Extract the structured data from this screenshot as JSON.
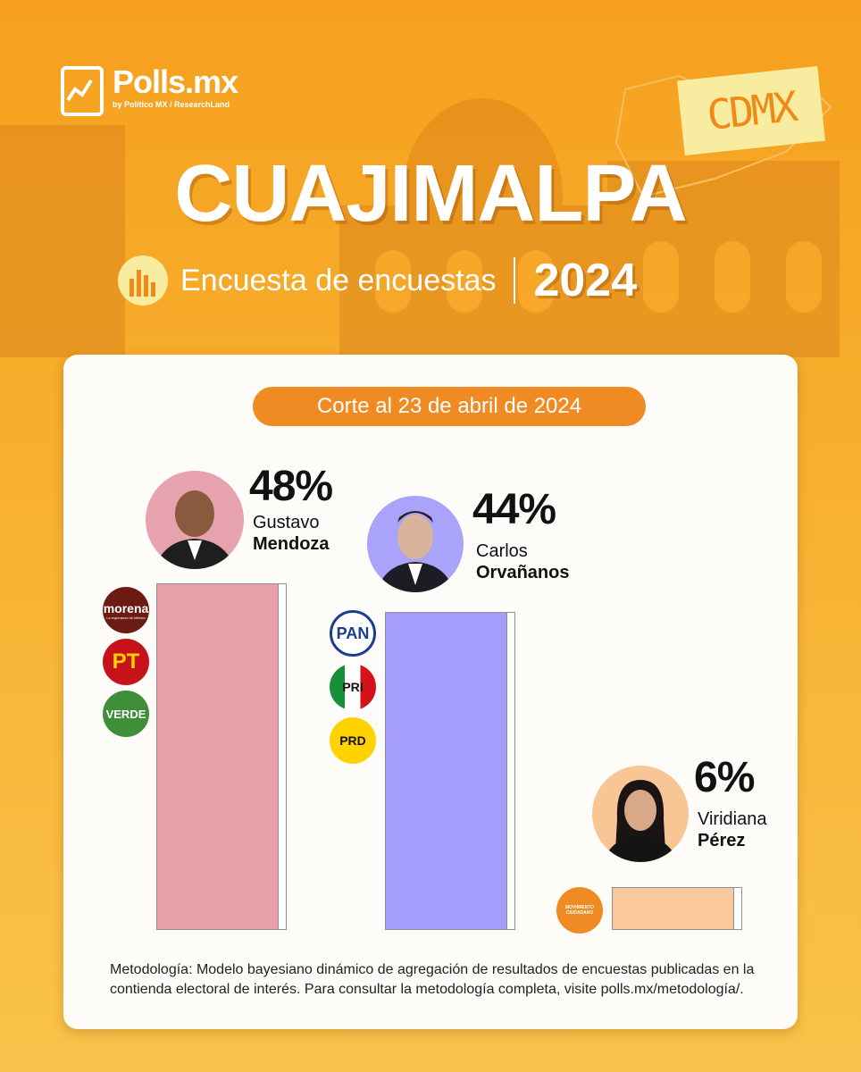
{
  "header": {
    "logo_name": "Polls.mx",
    "logo_sub": "by Político MX / ResearchLand",
    "region_badge": "CDMX",
    "title": "CUAJIMALPA",
    "subtitle": "Encuesta de encuestas",
    "year": "2024"
  },
  "chart_data": {
    "type": "bar",
    "title": "Corte al 23 de abril de 2024",
    "categories": [
      "Gustavo Mendoza",
      "Carlos Orvañanos",
      "Viridiana Pérez"
    ],
    "values": [
      48,
      44,
      6
    ],
    "value_labels": [
      "48%",
      "44%",
      "6%"
    ],
    "ylim": [
      0,
      48
    ],
    "candidates": [
      {
        "first": "Gustavo",
        "last": "Mendoza",
        "color": "#e8a0ab",
        "bg": "#e6a2ad",
        "parties": [
          "morena",
          "PT",
          "VERDE"
        ]
      },
      {
        "first": "Carlos",
        "last": "Orvañanos",
        "color": "#a49dfb",
        "bg": "#a9a3fb",
        "parties": [
          "PAN",
          "PRI",
          "PRD"
        ]
      },
      {
        "first": "Viridiana",
        "last": "Pérez",
        "color": "#f9c99b",
        "bg": "#f8c594",
        "parties": [
          "MOVIMIENTO CIUDADANO"
        ]
      }
    ]
  },
  "parties": {
    "morena": "morena",
    "morena_tag": "La esperanza de México",
    "pt": "PT",
    "verde": "VERDE",
    "pan": "PAN",
    "pri": "PRI",
    "prd": "PRD",
    "mc": "MOVIMIENTO CIUDADANO"
  },
  "footer": {
    "methodology": "Metodología: Modelo bayesiano dinámico de agregación de resultados de encuestas publicadas en la contienda electoral de interés. Para consultar la metodología completa, visite polls.mx/metodología/."
  }
}
